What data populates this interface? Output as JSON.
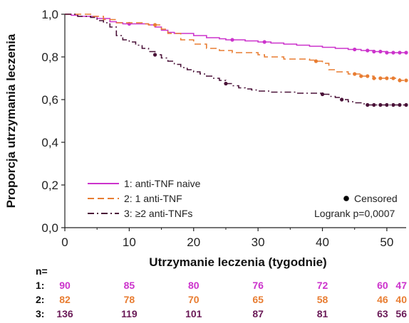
{
  "chart_data": {
    "type": "line",
    "subtype": "kaplan-meier-step",
    "xlabel": "Utrzymanie leczenia (tygodnie)",
    "ylabel": "Proporcja utrzymania leczenia",
    "xlim": [
      0,
      53
    ],
    "ylim": [
      0,
      1
    ],
    "xticks": [
      0,
      10,
      20,
      30,
      40,
      50
    ],
    "xtick_labels": [
      "0",
      "10",
      "20",
      "30",
      "40",
      "50"
    ],
    "yticks": [
      0,
      0.2,
      0.4,
      0.6,
      0.8,
      1.0
    ],
    "ytick_labels": [
      "0,0",
      "0,2",
      "0,4",
      "0,6",
      "0,8",
      "1,0"
    ],
    "grid": false,
    "legend_position": "bottom-left",
    "censored_label": "Censored",
    "stat_text": "Logrank p=0,0007",
    "series": [
      {
        "name": "1: anti-TNF naive",
        "color": "#cc33cc",
        "dash": "solid",
        "x": [
          0,
          1,
          2,
          5,
          7,
          8,
          9,
          12,
          13,
          14,
          15,
          16,
          17,
          20,
          22,
          24,
          25,
          28,
          30,
          32,
          34,
          36,
          38,
          40,
          42,
          44,
          46,
          48,
          50,
          53
        ],
        "y": [
          1.0,
          0.995,
          0.99,
          0.98,
          0.965,
          0.96,
          0.955,
          0.955,
          0.95,
          0.94,
          0.925,
          0.915,
          0.91,
          0.9,
          0.89,
          0.885,
          0.88,
          0.875,
          0.87,
          0.865,
          0.86,
          0.855,
          0.85,
          0.845,
          0.84,
          0.835,
          0.83,
          0.825,
          0.82,
          0.82
        ],
        "censored_x": [
          10,
          26,
          31,
          45,
          47,
          48,
          49,
          50,
          51,
          52,
          53
        ]
      },
      {
        "name": "2: 1 anti-TNF",
        "color": "#e87d32",
        "dash": "dashed",
        "x": [
          0,
          4,
          6,
          8,
          12,
          13,
          15,
          16,
          18,
          20,
          22,
          24,
          26,
          30,
          31,
          32,
          34,
          38,
          39,
          40,
          41,
          42,
          44,
          46,
          48,
          50,
          52,
          53
        ],
        "y": [
          1.0,
          0.99,
          0.975,
          0.96,
          0.955,
          0.95,
          0.93,
          0.91,
          0.88,
          0.86,
          0.84,
          0.83,
          0.82,
          0.81,
          0.8,
          0.8,
          0.79,
          0.785,
          0.78,
          0.77,
          0.74,
          0.73,
          0.72,
          0.71,
          0.7,
          0.7,
          0.69,
          0.69
        ],
        "censored_x": [
          14,
          39,
          45,
          46,
          47,
          48,
          49,
          50,
          51,
          52,
          53
        ]
      },
      {
        "name": "3: ≥2 anti-TNFs",
        "color": "#4a1238",
        "dash": "dashdot",
        "x": [
          0,
          2,
          4,
          5,
          6,
          7,
          8,
          9,
          10,
          11,
          12,
          13,
          14,
          15,
          16,
          17,
          18,
          19,
          20,
          21,
          22,
          23,
          24,
          25,
          26,
          27,
          28,
          29,
          30,
          31,
          32,
          34,
          36,
          38,
          40,
          41,
          42,
          43,
          44,
          45,
          46,
          47,
          50,
          53
        ],
        "y": [
          1.0,
          0.99,
          0.985,
          0.97,
          0.96,
          0.94,
          0.9,
          0.88,
          0.87,
          0.855,
          0.84,
          0.825,
          0.81,
          0.795,
          0.78,
          0.765,
          0.75,
          0.74,
          0.73,
          0.72,
          0.71,
          0.7,
          0.69,
          0.675,
          0.665,
          0.655,
          0.65,
          0.645,
          0.64,
          0.64,
          0.635,
          0.635,
          0.63,
          0.63,
          0.625,
          0.615,
          0.61,
          0.6,
          0.59,
          0.585,
          0.58,
          0.575,
          0.575,
          0.575
        ],
        "censored_x": [
          14,
          25,
          40,
          43,
          47,
          48,
          49,
          50,
          51,
          52,
          53
        ]
      }
    ],
    "risk_table": {
      "header": "n=",
      "x_positions": [
        0,
        10,
        20,
        30,
        40,
        50,
        53
      ],
      "rows": [
        {
          "label": "1:",
          "color": "#cc33cc",
          "values": [
            "90",
            "85",
            "80",
            "76",
            "72",
            "60",
            "47"
          ]
        },
        {
          "label": "2:",
          "color": "#e87d32",
          "values": [
            "82",
            "78",
            "70",
            "65",
            "58",
            "46",
            "40"
          ]
        },
        {
          "label": "3:",
          "color": "#6a1a57",
          "values": [
            "136",
            "119",
            "101",
            "87",
            "81",
            "63",
            "56"
          ]
        }
      ]
    }
  }
}
